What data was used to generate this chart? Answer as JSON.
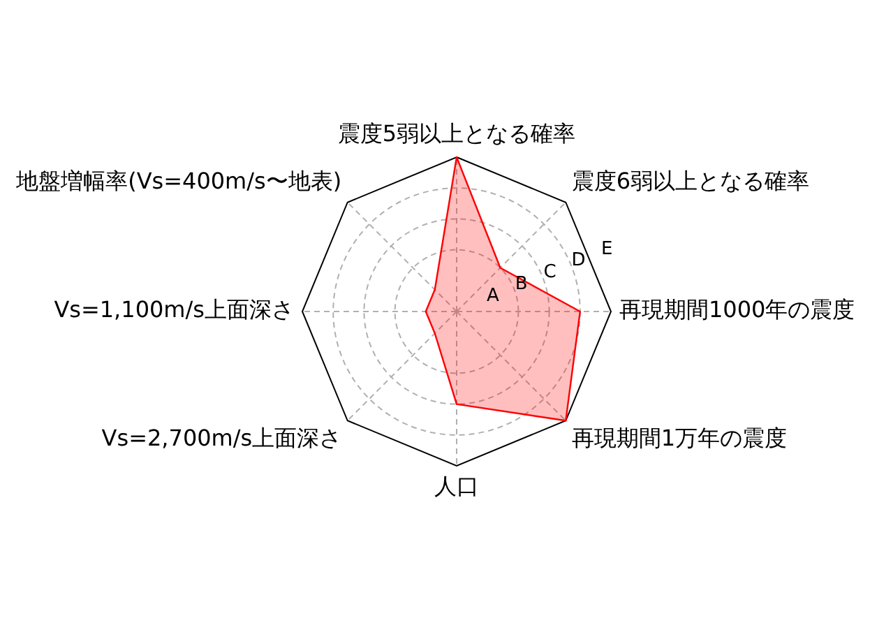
{
  "chart_data": {
    "type": "radar",
    "categories": [
      "震度5弱以上となる確率",
      "震度6弱以上となる確率",
      "再現期間1000年の震度",
      "再現期間1万年の震度",
      "人口",
      "Vs=2,700m/s上面深さ",
      "Vs=1,100m/s上面深さ",
      "地盤増幅率(Vs=400m/s〜地表)"
    ],
    "series": [
      {
        "color": "#ff0000",
        "values": [
          5,
          2,
          4,
          5,
          3,
          1,
          1,
          1
        ]
      }
    ],
    "ylim": [
      0,
      5
    ],
    "yticks": [
      {
        "value": 1,
        "label": "A"
      },
      {
        "value": 2,
        "label": "B"
      },
      {
        "value": 3,
        "label": "C"
      },
      {
        "value": 4,
        "label": "D"
      },
      {
        "value": 5,
        "label": "E"
      }
    ],
    "grid": true,
    "legend": false,
    "marker": "none"
  }
}
